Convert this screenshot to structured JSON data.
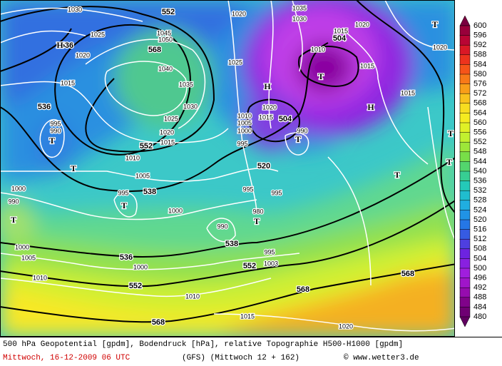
{
  "map": {
    "contour_labels": [
      "1030",
      "552",
      "1020",
      "1035",
      "1030",
      "1020",
      "1025",
      "1045",
      "1050",
      "1015",
      "504",
      "536",
      "1020",
      "568",
      "1010",
      "1025",
      "1015",
      "1040",
      "1015",
      "1035",
      "1015",
      "536",
      "1030",
      "1020",
      "1010",
      "1015",
      "504",
      "1025",
      "1005",
      "995",
      "990",
      "1000",
      "1020",
      "990",
      "552",
      "1015",
      "995",
      "1010",
      "520",
      "1005",
      "538",
      "995",
      "995",
      "1000",
      "995",
      "990",
      "1000",
      "980",
      "990",
      "538",
      "1005",
      "1000",
      "536",
      "995",
      "1000",
      "552",
      "1003",
      "568",
      "1010",
      "552",
      "568",
      "1010",
      "1015",
      "568",
      "1020",
      "1020"
    ],
    "symbols": [
      "H",
      "H",
      "H",
      "T",
      "T",
      "T",
      "T",
      "T",
      "T",
      "T",
      "T",
      "T",
      "T",
      "T"
    ]
  },
  "colorbar": {
    "labels": [
      600,
      596,
      592,
      588,
      584,
      580,
      576,
      572,
      568,
      564,
      560,
      556,
      552,
      548,
      544,
      540,
      536,
      532,
      528,
      524,
      520,
      516,
      512,
      508,
      504,
      500,
      496,
      492,
      488,
      484,
      480
    ]
  },
  "footer": {
    "line1": "500 hPa Geopotential [gpdm], Bodendruck [hPa], relative Topographie H500-H1000 [gpdm]",
    "date": "Mittwoch, 16-12-2009  06 UTC",
    "model": "(GFS)  (Mittwoch 12 + 162)",
    "copyright": "© www.wetter3.de"
  }
}
